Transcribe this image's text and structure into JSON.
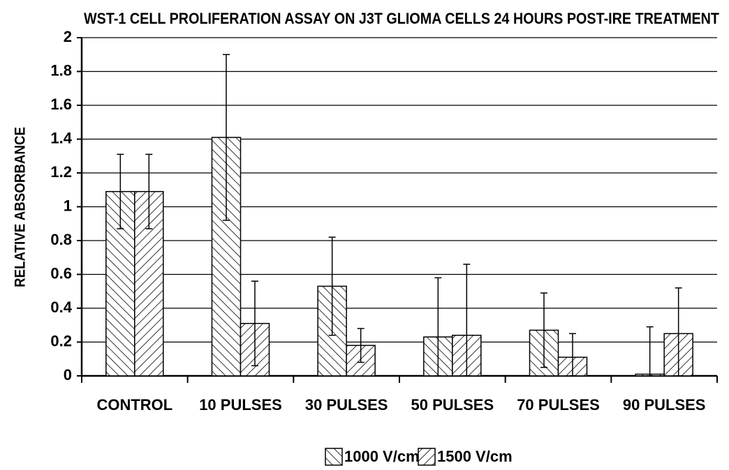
{
  "chart_data": {
    "type": "bar",
    "title": "WST-1 CELL PROLIFERATION ASSAY ON J3T GLIOMA CELLS 24 HOURS POST-IRE TREATMENT",
    "y_label": "RELATIVE ABSORBANCE",
    "categories": [
      "CONTROL",
      "10 PULSES",
      "30 PULSES",
      "50 PULSES",
      "70 PULSES",
      "90 PULSES"
    ],
    "series": [
      {
        "name": "1000 V/cm",
        "color": "#000000",
        "pattern": "backslash",
        "values": [
          1.09,
          1.41,
          0.53,
          0.23,
          0.27,
          0.01
        ],
        "errors": [
          0.22,
          0.49,
          0.29,
          0.35,
          0.22,
          0.28
        ]
      },
      {
        "name": "1500 V/cm",
        "color": "#000000",
        "pattern": "slash",
        "values": [
          1.09,
          0.31,
          0.18,
          0.24,
          0.11,
          0.25
        ],
        "errors": [
          0.22,
          0.25,
          0.1,
          0.42,
          0.14,
          0.27
        ]
      }
    ],
    "ylim": [
      0,
      2
    ],
    "yticks": [
      0,
      0.2,
      0.4,
      0.6,
      0.8,
      1,
      1.2,
      1.4,
      1.6,
      1.8,
      2
    ],
    "grid": true,
    "legend": "bottom"
  }
}
